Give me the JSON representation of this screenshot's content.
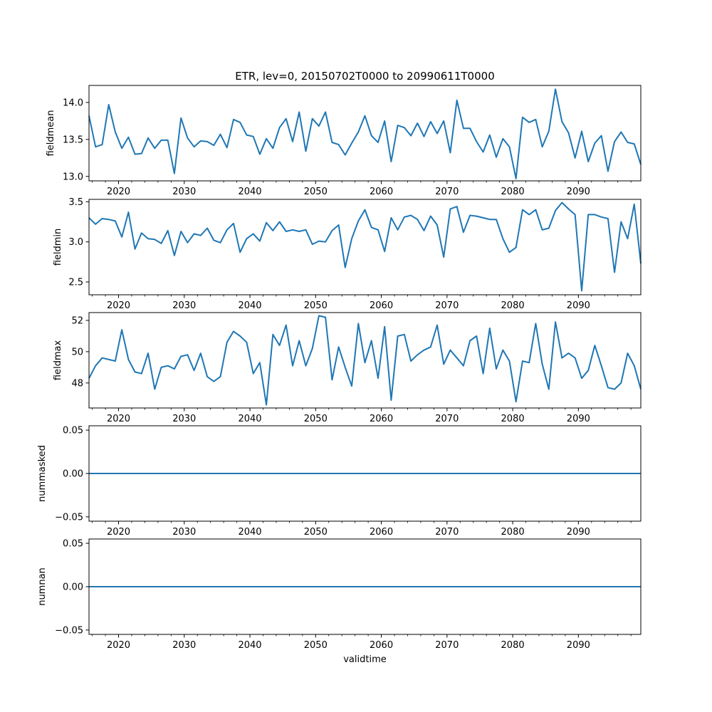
{
  "chart_data": [
    {
      "type": "line",
      "title": "ETR, lev=0, 20150702T0000 to 20990611T0000",
      "ylabel": "fieldmean",
      "xlabel": "",
      "xlim": [
        2015.5,
        2099.5
      ],
      "ylim": [
        12.94,
        14.23
      ],
      "x_ticks": [
        2020,
        2030,
        2040,
        2050,
        2060,
        2070,
        2080,
        2090
      ],
      "x_tick_labels": [
        "2020",
        "2030",
        "2040",
        "2050",
        "2060",
        "2070",
        "2080",
        "2090"
      ],
      "y_ticks": [
        13.0,
        13.5,
        14.0
      ],
      "y_tick_labels": [
        "13.0",
        "13.5",
        "14.0"
      ],
      "series": [
        {
          "name": "fieldmean",
          "color": "#1f77b4",
          "x_start": 2015.5,
          "x_step": 1,
          "values": [
            13.82,
            13.4,
            13.43,
            13.97,
            13.6,
            13.38,
            13.53,
            13.3,
            13.31,
            13.52,
            13.38,
            13.49,
            13.49,
            13.04,
            13.79,
            13.52,
            13.4,
            13.48,
            13.47,
            13.42,
            13.57,
            13.39,
            13.77,
            13.73,
            13.56,
            13.54,
            13.3,
            13.51,
            13.38,
            13.66,
            13.78,
            13.47,
            13.87,
            13.34,
            13.78,
            13.68,
            13.87,
            13.46,
            13.43,
            13.29,
            13.45,
            13.6,
            13.82,
            13.55,
            13.46,
            13.75,
            13.2,
            13.69,
            13.66,
            13.55,
            13.72,
            13.54,
            13.74,
            13.58,
            13.75,
            13.32,
            14.03,
            13.65,
            13.65,
            13.47,
            13.33,
            13.56,
            13.26,
            13.51,
            13.4,
            12.97,
            13.8,
            13.73,
            13.77,
            13.4,
            13.61,
            14.18,
            13.74,
            13.59,
            13.25,
            13.61,
            13.2,
            13.45,
            13.55,
            13.07,
            13.47,
            13.6,
            13.46,
            13.44,
            13.16
          ]
        }
      ]
    },
    {
      "type": "line",
      "ylabel": "fieldmin",
      "xlabel": "",
      "xlim": [
        2015.5,
        2099.5
      ],
      "ylim": [
        2.34,
        3.53
      ],
      "x_ticks": [
        2020,
        2030,
        2040,
        2050,
        2060,
        2070,
        2080,
        2090
      ],
      "x_tick_labels": [
        "2020",
        "2030",
        "2040",
        "2050",
        "2060",
        "2070",
        "2080",
        "2090"
      ],
      "y_ticks": [
        2.5,
        3.0,
        3.5
      ],
      "y_tick_labels": [
        "2.5",
        "3.0",
        "3.5"
      ],
      "series": [
        {
          "name": "fieldmin",
          "color": "#1f77b4",
          "x_start": 2015.5,
          "x_step": 1,
          "values": [
            3.3,
            3.22,
            3.29,
            3.28,
            3.26,
            3.06,
            3.37,
            2.91,
            3.11,
            3.04,
            3.03,
            2.98,
            3.14,
            2.83,
            3.13,
            2.99,
            3.1,
            3.08,
            3.17,
            3.02,
            2.99,
            3.15,
            3.23,
            2.87,
            3.04,
            3.1,
            3.01,
            3.24,
            3.14,
            3.25,
            3.13,
            3.15,
            3.13,
            3.15,
            2.97,
            3.01,
            3.0,
            3.14,
            3.21,
            2.68,
            3.04,
            3.26,
            3.4,
            3.18,
            3.15,
            2.88,
            3.3,
            3.15,
            3.31,
            3.33,
            3.28,
            3.14,
            3.32,
            3.21,
            2.81,
            3.41,
            3.44,
            3.12,
            3.33,
            3.32,
            3.3,
            3.28,
            3.28,
            3.04,
            2.87,
            2.93,
            3.4,
            3.34,
            3.4,
            3.15,
            3.17,
            3.39,
            3.49,
            3.41,
            3.34,
            2.39,
            3.34,
            3.34,
            3.31,
            3.29,
            2.62,
            3.25,
            3.04,
            3.47,
            2.73
          ]
        }
      ]
    },
    {
      "type": "line",
      "ylabel": "fieldmax",
      "xlabel": "",
      "xlim": [
        2015.5,
        2099.5
      ],
      "ylim": [
        46.4,
        52.5
      ],
      "x_ticks": [
        2020,
        2030,
        2040,
        2050,
        2060,
        2070,
        2080,
        2090
      ],
      "x_tick_labels": [
        "2020",
        "2030",
        "2040",
        "2050",
        "2060",
        "2070",
        "2080",
        "2090"
      ],
      "y_ticks": [
        48,
        50,
        52
      ],
      "y_tick_labels": [
        "48",
        "50",
        "52"
      ],
      "series": [
        {
          "name": "fieldmax",
          "color": "#1f77b4",
          "x_start": 2015.5,
          "x_step": 1,
          "values": [
            48.3,
            49.1,
            49.6,
            49.5,
            49.4,
            51.4,
            49.5,
            48.7,
            48.6,
            49.9,
            47.6,
            49.0,
            49.1,
            48.9,
            49.7,
            49.8,
            48.8,
            49.9,
            48.4,
            48.1,
            48.4,
            50.6,
            51.3,
            51.0,
            50.6,
            48.6,
            49.3,
            46.6,
            51.1,
            50.4,
            51.7,
            49.1,
            50.7,
            49.1,
            50.2,
            52.3,
            52.2,
            48.2,
            50.3,
            49.0,
            47.8,
            51.8,
            49.3,
            50.7,
            48.3,
            51.6,
            46.9,
            51.0,
            51.1,
            49.4,
            49.8,
            50.1,
            50.3,
            51.7,
            49.2,
            50.1,
            49.6,
            49.1,
            50.7,
            51.0,
            48.6,
            51.5,
            48.9,
            50.1,
            49.4,
            46.8,
            49.4,
            49.3,
            51.8,
            49.2,
            47.6,
            51.9,
            49.6,
            49.9,
            49.6,
            48.3,
            48.8,
            50.4,
            49.1,
            47.7,
            47.6,
            48.0,
            49.9,
            49.1,
            47.6
          ]
        }
      ]
    },
    {
      "type": "line",
      "ylabel": "nummasked",
      "xlabel": "",
      "xlim": [
        2015.5,
        2099.5
      ],
      "ylim": [
        -0.055,
        0.055
      ],
      "x_ticks": [
        2020,
        2030,
        2040,
        2050,
        2060,
        2070,
        2080,
        2090
      ],
      "x_tick_labels": [
        "2020",
        "2030",
        "2040",
        "2050",
        "2060",
        "2070",
        "2080",
        "2090"
      ],
      "y_ticks": [
        -0.05,
        0.0,
        0.05
      ],
      "y_tick_labels": [
        "−0.05",
        "0.00",
        "0.05"
      ],
      "series": [
        {
          "name": "nummasked",
          "color": "#1f77b4",
          "x_start": 2015.5,
          "x_step": 84,
          "values": [
            0,
            0
          ]
        }
      ]
    },
    {
      "type": "line",
      "ylabel": "numnan",
      "xlabel": "validtime",
      "xlim": [
        2015.5,
        2099.5
      ],
      "ylim": [
        -0.055,
        0.055
      ],
      "x_ticks": [
        2020,
        2030,
        2040,
        2050,
        2060,
        2070,
        2080,
        2090
      ],
      "x_tick_labels": [
        "2020",
        "2030",
        "2040",
        "2050",
        "2060",
        "2070",
        "2080",
        "2090"
      ],
      "y_ticks": [
        -0.05,
        0.0,
        0.05
      ],
      "y_tick_labels": [
        "−0.05",
        "0.00",
        "0.05"
      ],
      "series": [
        {
          "name": "numnan",
          "color": "#1f77b4",
          "x_start": 2015.5,
          "x_step": 84,
          "values": [
            0,
            0
          ]
        }
      ]
    }
  ]
}
